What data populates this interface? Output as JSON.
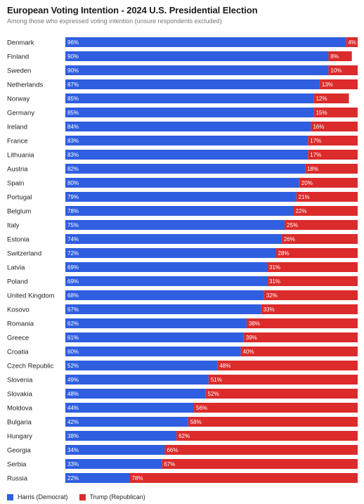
{
  "chart_data": {
    "type": "bar",
    "orientation": "horizontal",
    "stacked": true,
    "title": "European Voting Intention - 2024 U.S. Presidential Election",
    "subtitle": "Among those who expressed voting intention (unsure respondents excluded)",
    "categories": [
      "Denmark",
      "Finland",
      "Sweden",
      "Netherlands",
      "Norway",
      "Germany",
      "Ireland",
      "France",
      "Lithuania",
      "Austria",
      "Spain",
      "Portugal",
      "Belgium",
      "Italy",
      "Estonia",
      "Switzerland",
      "Latvia",
      "Poland",
      "United Kingdom",
      "Kosovo",
      "Romania",
      "Greece",
      "Croatia",
      "Czech Republic",
      "Slovenia",
      "Slovakia",
      "Moldova",
      "Bulgaria",
      "Hungary",
      "Georgia",
      "Serbia",
      "Russia"
    ],
    "series": [
      {
        "name": "Harris (Democrat)",
        "color": "#2f5ee0",
        "values": [
          96,
          90,
          90,
          87,
          85,
          85,
          84,
          83,
          83,
          82,
          80,
          79,
          78,
          75,
          74,
          72,
          69,
          69,
          68,
          67,
          62,
          61,
          60,
          52,
          49,
          48,
          44,
          42,
          38,
          34,
          33,
          22
        ]
      },
      {
        "name": "Trump (Republican)",
        "color": "#db2b2b",
        "values": [
          4,
          8,
          10,
          13,
          12,
          15,
          16,
          17,
          17,
          18,
          20,
          21,
          22,
          25,
          26,
          28,
          31,
          31,
          32,
          33,
          38,
          39,
          40,
          48,
          51,
          52,
          56,
          58,
          62,
          66,
          67,
          78
        ]
      }
    ],
    "xlim": [
      0,
      100
    ],
    "legend_position": "bottom-left",
    "grid": false
  }
}
